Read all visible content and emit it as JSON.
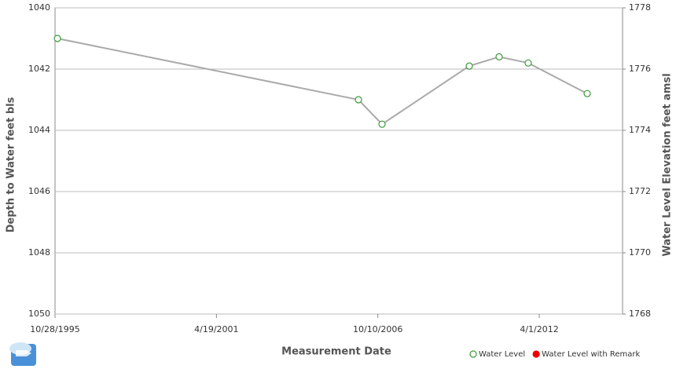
{
  "chart_data": {
    "type": "line",
    "x_label": "Measurement Date",
    "y_label": "Depth to Water feet bls",
    "y2_label": "Water Level Elevation feet amsl",
    "xlim": [
      "10/28/1995",
      "1/28/2015"
    ],
    "xticks": [
      "10/28/1995",
      "4/19/2001",
      "10/10/2006",
      "4/1/2012"
    ],
    "ylim": [
      1040,
      1050
    ],
    "yticks": [
      1040,
      1042,
      1044,
      1046,
      1048,
      1050
    ],
    "y_inverted": true,
    "y2lim": [
      1768,
      1778
    ],
    "y2ticks": [
      1768,
      1770,
      1772,
      1774,
      1776,
      1778
    ],
    "grid": true,
    "line_color": "#aaaaaa",
    "series": [
      {
        "name": "Water Level",
        "color": "#3a9a3a",
        "filled": false,
        "x": [
          "11/27/1995",
          "2/12/2006",
          "12/1/2006",
          "11/16/2009",
          "11/21/2010",
          "11/16/2011",
          "11/16/2013"
        ],
        "values": [
          1041.0,
          1043.0,
          1043.8,
          1041.9,
          1041.6,
          1041.8,
          1042.8
        ]
      },
      {
        "name": "Water Level with Remark",
        "color": "#ee0000",
        "filled": true,
        "x": [],
        "values": []
      }
    ]
  }
}
